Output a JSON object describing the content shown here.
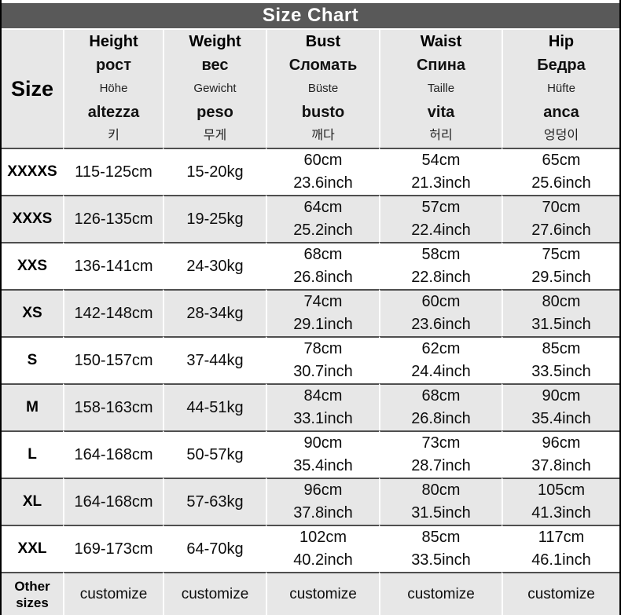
{
  "title": "Size Chart",
  "colors": {
    "title_bar_bg": "#595959",
    "title_text": "#ffffff",
    "shaded_row_bg": "#e7e7e7",
    "row_border": "#4f4f4f",
    "outer_border": "#000000",
    "text": "#0d0d0d"
  },
  "chart_data": {
    "type": "table",
    "title": "Size Chart",
    "header": {
      "size_label": "Size",
      "measure_columns": [
        {
          "en": "Height",
          "ru": "рост",
          "de": "Höhe",
          "it": "altezza",
          "ko": "키"
        },
        {
          "en": "Weight",
          "ru": "вес",
          "de": "Gewicht",
          "it": "peso",
          "ko": "무게"
        },
        {
          "en": "Bust",
          "ru": "Сломать",
          "de": "Büste",
          "it": "busto",
          "ko": "깨다"
        },
        {
          "en": "Waist",
          "ru": "Спина",
          "de": "Taille",
          "it": "vita",
          "ko": "허리"
        },
        {
          "en": "Hip",
          "ru": "Бедра",
          "de": "Hüfte",
          "it": "anca",
          "ko": "엉덩이"
        }
      ]
    },
    "rows": [
      {
        "size_lines": [
          "XXXXS"
        ],
        "height": "115-125cm",
        "weight": "15-20kg",
        "bust": [
          "60cm",
          "23.6inch"
        ],
        "waist": [
          "54cm",
          "21.3inch"
        ],
        "hip": [
          "65cm",
          "25.6inch"
        ]
      },
      {
        "size_lines": [
          "XXXS"
        ],
        "height": "126-135cm",
        "weight": "19-25kg",
        "bust": [
          "64cm",
          "25.2inch"
        ],
        "waist": [
          "57cm",
          "22.4inch"
        ],
        "hip": [
          "70cm",
          "27.6inch"
        ]
      },
      {
        "size_lines": [
          "XXS"
        ],
        "height": "136-141cm",
        "weight": "24-30kg",
        "bust": [
          "68cm",
          "26.8inch"
        ],
        "waist": [
          "58cm",
          "22.8inch"
        ],
        "hip": [
          "75cm",
          "29.5inch"
        ]
      },
      {
        "size_lines": [
          "XS"
        ],
        "height": "142-148cm",
        "weight": "28-34kg",
        "bust": [
          "74cm",
          "29.1inch"
        ],
        "waist": [
          "60cm",
          "23.6inch"
        ],
        "hip": [
          "80cm",
          "31.5inch"
        ]
      },
      {
        "size_lines": [
          "S"
        ],
        "height": "150-157cm",
        "weight": "37-44kg",
        "bust": [
          "78cm",
          "30.7inch"
        ],
        "waist": [
          "62cm",
          "24.4inch"
        ],
        "hip": [
          "85cm",
          "33.5inch"
        ]
      },
      {
        "size_lines": [
          "M"
        ],
        "height": "158-163cm",
        "weight": "44-51kg",
        "bust": [
          "84cm",
          "33.1inch"
        ],
        "waist": [
          "68cm",
          "26.8inch"
        ],
        "hip": [
          "90cm",
          "35.4inch"
        ]
      },
      {
        "size_lines": [
          "L"
        ],
        "height": "164-168cm",
        "weight": "50-57kg",
        "bust": [
          "90cm",
          "35.4inch"
        ],
        "waist": [
          "73cm",
          "28.7inch"
        ],
        "hip": [
          "96cm",
          "37.8inch"
        ]
      },
      {
        "size_lines": [
          "XL"
        ],
        "height": "164-168cm",
        "weight": "57-63kg",
        "bust": [
          "96cm",
          "37.8inch"
        ],
        "waist": [
          "80cm",
          "31.5inch"
        ],
        "hip": [
          "105cm",
          "41.3inch"
        ]
      },
      {
        "size_lines": [
          "XXL"
        ],
        "height": "169-173cm",
        "weight": "64-70kg",
        "bust": [
          "102cm",
          "40.2inch"
        ],
        "waist": [
          "85cm",
          "33.5inch"
        ],
        "hip": [
          "117cm",
          "46.1inch"
        ]
      },
      {
        "size_lines": [
          "Other",
          "sizes"
        ],
        "height": "customize",
        "weight": "customize",
        "bust": [
          "customize"
        ],
        "waist": [
          "customize"
        ],
        "hip": [
          "customize"
        ]
      }
    ]
  }
}
